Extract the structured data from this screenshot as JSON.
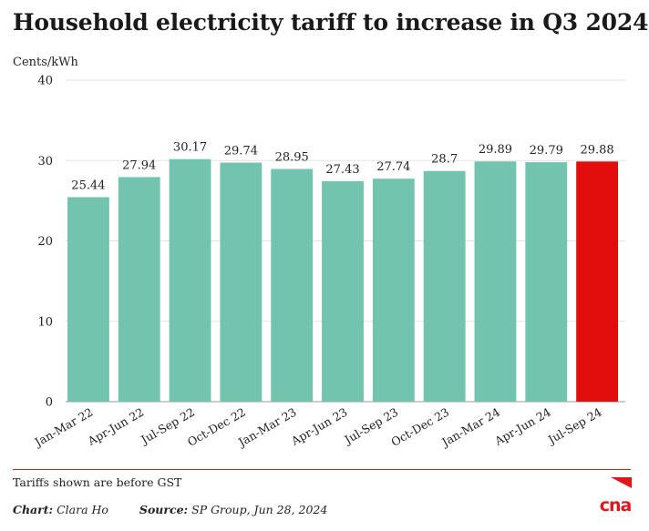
{
  "title": "Household electricity tariff to increase in Q3 2024",
  "note": "Tariffs shown are before GST",
  "credits": {
    "chart_label": "Chart:",
    "chart_author": "Clara Ho",
    "source_label": "Source:",
    "source_text": "SP Group, Jun 28, 2024"
  },
  "logo_text": "cna",
  "colors": {
    "bar": "#73c4ae",
    "highlight": "#e20e0e",
    "brand": "#e0161e",
    "gridline": "#e3e3e3"
  },
  "chart_data": {
    "type": "bar",
    "title": "Household electricity tariff to increase in Q3 2024",
    "xlabel": "",
    "ylabel": "Cents/kWh",
    "ylim": [
      0,
      40
    ],
    "yticks": [
      0,
      10,
      20,
      30,
      40
    ],
    "grid": true,
    "categories": [
      "Jan-Mar 22",
      "Apr-Jun 22",
      "Jul-Sep 22",
      "Oct-Dec 22",
      "Jan-Mar 23",
      "Apr-Jun 23",
      "Jul-Sep 23",
      "Oct-Dec 23",
      "Jan-Mar 24",
      "Apr-Jun 24",
      "Jul-Sep 24"
    ],
    "values": [
      25.44,
      27.94,
      30.17,
      29.74,
      28.95,
      27.43,
      27.74,
      28.7,
      29.89,
      29.79,
      29.88
    ],
    "value_labels": [
      "25.44",
      "27.94",
      "30.17",
      "29.74",
      "28.95",
      "27.43",
      "27.74",
      "28.7",
      "29.89",
      "29.79",
      "29.88"
    ],
    "highlight_category": "Jul-Sep 24"
  }
}
